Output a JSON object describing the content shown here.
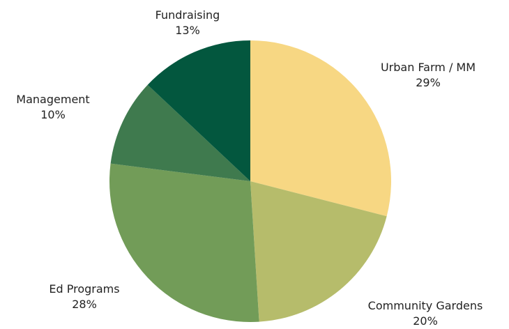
{
  "chart_data": {
    "type": "pie",
    "title": "",
    "start_angle_deg": 0,
    "direction": "clockwise",
    "categories": [
      "Urban Farm / MM",
      "Community Gardens",
      "Ed Programs",
      "Management",
      "Fundraising"
    ],
    "values": [
      29,
      20,
      28,
      10,
      13
    ],
    "value_labels": [
      "29%",
      "20%",
      "28%",
      "10%",
      "13%"
    ],
    "colors": [
      "#f7d783",
      "#b6bc6b",
      "#729c58",
      "#3f7a4e",
      "#03573e"
    ]
  }
}
